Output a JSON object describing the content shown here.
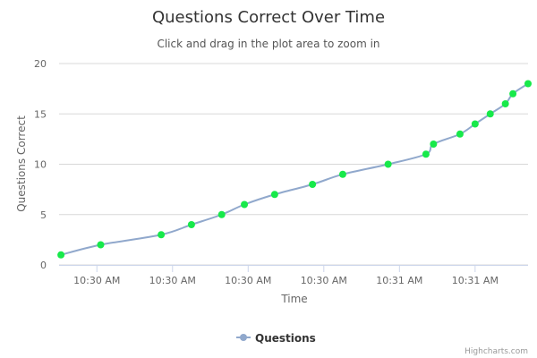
{
  "chart_data": {
    "type": "line",
    "title": "Questions Correct Over Time",
    "subtitle": "Click and drag in the plot area to zoom in",
    "xlabel": "Time",
    "ylabel": "Questions Correct",
    "ylim": [
      0,
      20
    ],
    "yticks": [
      0,
      5,
      10,
      15,
      20
    ],
    "xlim": [
      0,
      124
    ],
    "xticks": [
      {
        "x": 10,
        "label": "10:30 AM"
      },
      {
        "x": 30,
        "label": "10:30 AM"
      },
      {
        "x": 50,
        "label": "10:30 AM"
      },
      {
        "x": 70,
        "label": "10:30 AM"
      },
      {
        "x": 90,
        "label": "10:31 AM"
      },
      {
        "x": 110,
        "label": "10:31 AM"
      }
    ],
    "grid": true,
    "legend_position": "bottom-center",
    "series": [
      {
        "name": "Questions",
        "line_color": "#90a8cc",
        "marker_color": "#17e94a",
        "points": [
          {
            "x": 0.5,
            "y": 1
          },
          {
            "x": 11,
            "y": 2
          },
          {
            "x": 27,
            "y": 3
          },
          {
            "x": 35,
            "y": 4
          },
          {
            "x": 43,
            "y": 5
          },
          {
            "x": 49,
            "y": 6
          },
          {
            "x": 57,
            "y": 7
          },
          {
            "x": 67,
            "y": 8
          },
          {
            "x": 75,
            "y": 9
          },
          {
            "x": 87,
            "y": 10
          },
          {
            "x": 97,
            "y": 11
          },
          {
            "x": 99,
            "y": 12
          },
          {
            "x": 106,
            "y": 13
          },
          {
            "x": 110,
            "y": 14
          },
          {
            "x": 114,
            "y": 15
          },
          {
            "x": 118,
            "y": 16
          },
          {
            "x": 120,
            "y": 17
          },
          {
            "x": 124,
            "y": 18
          }
        ]
      }
    ]
  },
  "credits": "Highcharts.com"
}
